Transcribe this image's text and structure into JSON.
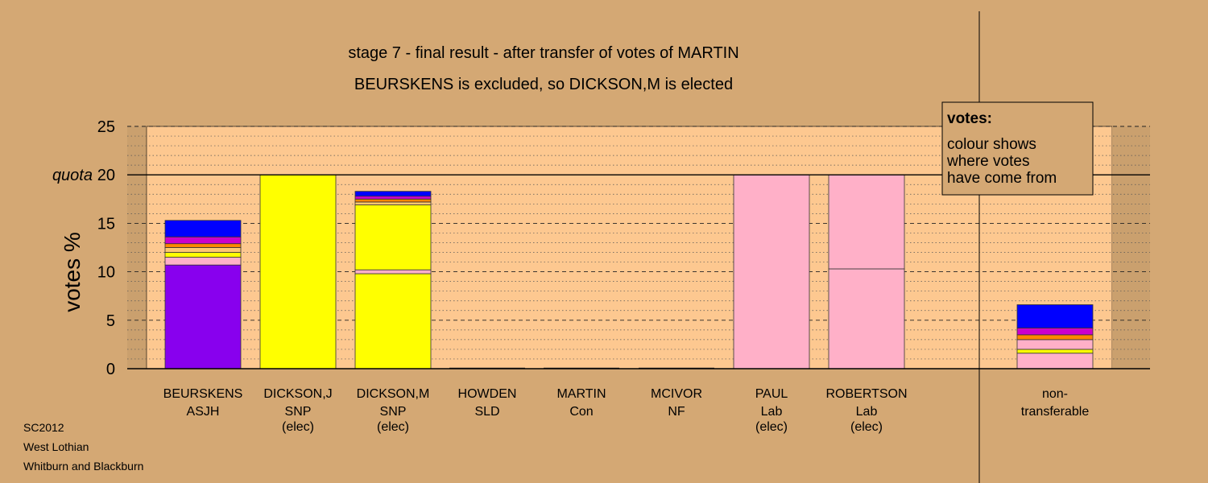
{
  "chart_data": {
    "type": "bar",
    "stacked": true,
    "title": "stage 7 - final result - after transfer of votes of MARTIN",
    "subtitle": "BEURSKENS is excluded, so DICKSON,M is elected",
    "ylabel": "votes %",
    "ylim": [
      0,
      25
    ],
    "yticks": [
      0,
      5,
      10,
      15,
      20,
      25
    ],
    "quota": {
      "value": 20,
      "label": "quota"
    },
    "grid": true,
    "legend": {
      "title": "votes:",
      "lines": [
        "colour shows",
        "where votes",
        "have come from"
      ],
      "placement": "top-right"
    },
    "candidates": [
      {
        "name": "BEURSKENS",
        "party": "ASJH",
        "status": "",
        "segments": [
          {
            "value": 10.7,
            "color": "#8800ee"
          },
          {
            "value": 0.8,
            "color": "#ffb0c8"
          },
          {
            "value": 0.5,
            "color": "#ffff00"
          },
          {
            "value": 0.5,
            "color": "#ffc870"
          },
          {
            "value": 0.4,
            "color": "#ff8800"
          },
          {
            "value": 0.7,
            "color": "#cc00cc"
          },
          {
            "value": 1.7,
            "color": "#0000ff"
          }
        ]
      },
      {
        "name": "DICKSON,J",
        "party": "SNP",
        "status": "(elec)",
        "segments": [
          {
            "value": 20.0,
            "color": "#ffff00"
          }
        ]
      },
      {
        "name": "DICKSON,M",
        "party": "SNP",
        "status": "(elec)",
        "segments": [
          {
            "value": 9.8,
            "color": "#ffff00"
          },
          {
            "value": 0.4,
            "color": "#ffb0c8"
          },
          {
            "value": 6.7,
            "color": "#ffff00"
          },
          {
            "value": 0.3,
            "color": "#ffc870"
          },
          {
            "value": 0.3,
            "color": "#ff8800"
          },
          {
            "value": 0.3,
            "color": "#cc00cc"
          },
          {
            "value": 0.5,
            "color": "#0000ff"
          }
        ]
      },
      {
        "name": "HOWDEN",
        "party": "SLD",
        "status": "",
        "segments": []
      },
      {
        "name": "MARTIN",
        "party": "Con",
        "status": "",
        "segments": []
      },
      {
        "name": "MCIVOR",
        "party": "NF",
        "status": "",
        "segments": []
      },
      {
        "name": "PAUL",
        "party": "Lab",
        "status": "(elec)",
        "segments": [
          {
            "value": 20.0,
            "color": "#ffb0c8"
          }
        ]
      },
      {
        "name": "ROBERTSON",
        "party": "Lab",
        "status": "(elec)",
        "segments": [
          {
            "value": 10.3,
            "color": "#ffb0c8"
          },
          {
            "value": 9.7,
            "color": "#ffb0c8"
          }
        ]
      }
    ],
    "nontransferable": {
      "label_lines": [
        "non-",
        "transferable"
      ],
      "segments": [
        {
          "value": 1.6,
          "color": "#ffb0c8"
        },
        {
          "value": 0.4,
          "color": "#ffff00"
        },
        {
          "value": 1.0,
          "color": "#ffb0c8"
        },
        {
          "value": 0.5,
          "color": "#ff8800"
        },
        {
          "value": 0.7,
          "color": "#cc00cc"
        },
        {
          "value": 2.4,
          "color": "#0000ff"
        }
      ]
    }
  },
  "footer": {
    "line1": "SC2012",
    "line2": "West Lothian",
    "line3": "Whitburn and Blackburn"
  },
  "colors": {
    "background": "#d4a874",
    "plot_area": "#fdc890",
    "plot_shaded": "#caa06e"
  }
}
